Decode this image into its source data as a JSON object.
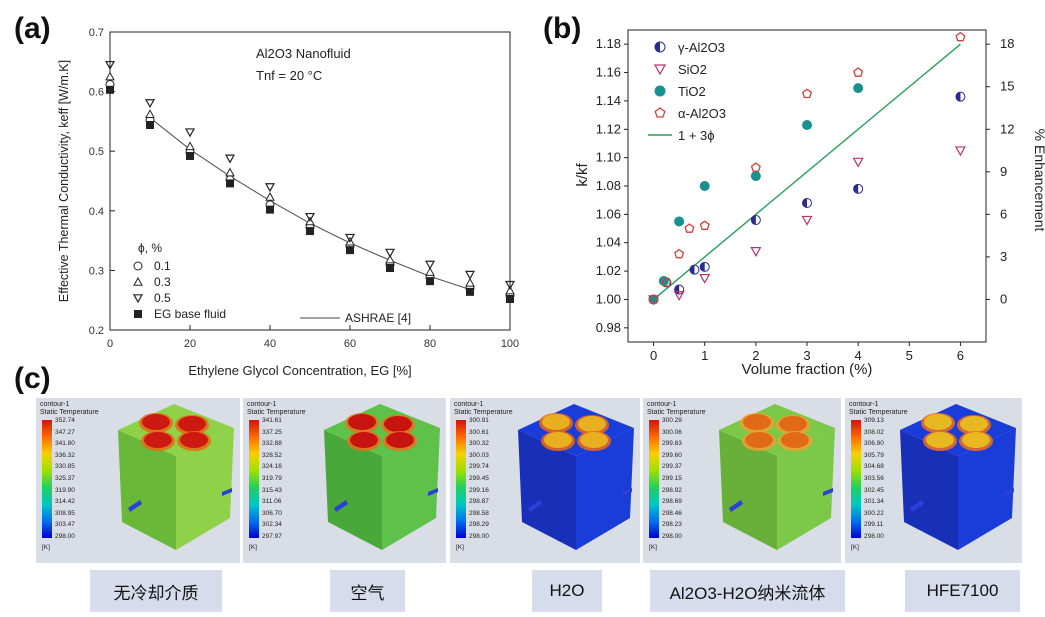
{
  "labels": {
    "a": "(a)",
    "b": "(b)",
    "c": "(c)"
  },
  "chart_data": [
    {
      "type": "scatter",
      "panel": "(a)",
      "title_line1": "Al2O3 Nanofluid",
      "title_line2": "Tnf = 20 °C",
      "xlabel": "Ethylene Glycol Concentration, EG [%]",
      "ylabel": "Effective Thermal Conductivity, keff [W/m.K]",
      "xlim": [
        0,
        100
      ],
      "ylim": [
        0.2,
        0.7
      ],
      "xticks": [
        "0",
        "20",
        "40",
        "60",
        "80",
        "100"
      ],
      "yticks": [
        "0.2",
        "0.3",
        "0.4",
        "0.5",
        "0.6",
        "0.7"
      ],
      "legend_title": "ϕ, %",
      "x": [
        0,
        10,
        20,
        30,
        40,
        50,
        60,
        70,
        80,
        90,
        100
      ],
      "series": [
        {
          "name": "0.1",
          "marker": "circle",
          "values": [
            0.612,
            0.552,
            0.498,
            0.452,
            0.41,
            0.372,
            0.34,
            0.31,
            0.288,
            0.27,
            0.258
          ]
        },
        {
          "name": "0.3",
          "marker": "triangle-up",
          "values": [
            0.625,
            0.562,
            0.508,
            0.464,
            0.423,
            0.382,
            0.348,
            0.318,
            0.297,
            0.279,
            0.266
          ]
        },
        {
          "name": "0.5",
          "marker": "triangle-down",
          "values": [
            0.645,
            0.581,
            0.532,
            0.488,
            0.44,
            0.39,
            0.355,
            0.33,
            0.31,
            0.293,
            0.276
          ]
        },
        {
          "name": "EG base fluid",
          "marker": "square",
          "values": [
            0.603,
            0.544,
            0.492,
            0.446,
            0.402,
            0.366,
            0.334,
            0.304,
            0.282,
            0.264,
            0.252
          ]
        }
      ],
      "fit": {
        "name": "ASHRAE [4]",
        "x": [
          10,
          20,
          30,
          40,
          50,
          60,
          70,
          80,
          90
        ],
        "values": [
          0.556,
          0.503,
          0.458,
          0.417,
          0.379,
          0.346,
          0.317,
          0.29,
          0.268
        ]
      }
    },
    {
      "type": "scatter",
      "panel": "(b)",
      "xlabel": "Volume fraction (%)",
      "ylabel": "k/kf",
      "y2label": "% Enhancement",
      "xlim": [
        -0.5,
        6.5
      ],
      "ylim": [
        0.97,
        1.19
      ],
      "xticks": [
        "0",
        "1",
        "2",
        "3",
        "4",
        "5",
        "6"
      ],
      "yticks": [
        "0.98",
        "1.00",
        "1.02",
        "1.04",
        "1.06",
        "1.08",
        "1.10",
        "1.12",
        "1.14",
        "1.16",
        "1.18"
      ],
      "y2ticks": [
        "0",
        "3",
        "6",
        "9",
        "12",
        "15",
        "18"
      ],
      "series": [
        {
          "name": "γ-Al2O3",
          "color": "#2b2b8f",
          "marker": "half-circle",
          "x": [
            0,
            0.25,
            0.5,
            0.8,
            1,
            2,
            3,
            4,
            6
          ],
          "values": [
            1.0,
            1.012,
            1.007,
            1.021,
            1.023,
            1.056,
            1.068,
            1.078,
            1.143
          ]
        },
        {
          "name": "SiO2",
          "color": "#c0306a",
          "marker": "triangle-down",
          "x": [
            0,
            0.5,
            1,
            2,
            3,
            4,
            6
          ],
          "values": [
            1.0,
            1.003,
            1.015,
            1.034,
            1.056,
            1.097,
            1.105
          ]
        },
        {
          "name": "TiO2",
          "color": "#1a9090",
          "marker": "circle",
          "x": [
            0,
            0.2,
            0.5,
            1,
            2,
            3,
            4
          ],
          "values": [
            1.0,
            1.013,
            1.055,
            1.08,
            1.087,
            1.123,
            1.149
          ]
        },
        {
          "name": "α-Al2O3",
          "color": "#d0403a",
          "marker": "pentagon",
          "x": [
            0,
            0.25,
            0.5,
            0.7,
            1,
            2,
            3,
            4,
            6
          ],
          "values": [
            1.0,
            1.012,
            1.032,
            1.05,
            1.052,
            1.093,
            1.145,
            1.16,
            1.185
          ]
        }
      ],
      "fit": {
        "name": "1 + 3ϕ",
        "color": "#2a9d5c",
        "x": [
          0,
          6
        ],
        "values": [
          1.0,
          1.18
        ]
      }
    }
  ],
  "simulations": [
    {
      "caption": "无冷却介质",
      "cb_title1": "contour-1",
      "cb_title2": "Static Temperature",
      "cb_unit": "[K]",
      "cb_values": [
        "352.74",
        "347.27",
        "341.80",
        "336.32",
        "330.85",
        "325.37",
        "319.90",
        "314.42",
        "308.95",
        "303.47",
        "298.00"
      ],
      "face_color": "#8fd24a",
      "side_color": "#6ab83a",
      "disk_color": "#cc1a12",
      "disk_ring": "#e86a10"
    },
    {
      "caption": "空气",
      "cb_title1": "contour-1",
      "cb_title2": "Static Temperature",
      "cb_unit": "[K]",
      "cb_values": [
        "341.61",
        "337.25",
        "332.88",
        "328.52",
        "324.16",
        "319.79",
        "315.43",
        "311.06",
        "306.70",
        "302.34",
        "297.97"
      ],
      "face_color": "#5ec24a",
      "side_color": "#48a83a",
      "disk_color": "#c81410",
      "disk_ring": "#e8701a"
    },
    {
      "caption": "H2O",
      "cb_title1": "contour-1",
      "cb_title2": "Static Temperature",
      "cb_unit": "[K]",
      "cb_values": [
        "300.91",
        "300.61",
        "300.32",
        "300.03",
        "299.74",
        "299.45",
        "299.16",
        "298.87",
        "298.58",
        "298.29",
        "298.00"
      ],
      "face_color": "#1a3cd8",
      "side_color": "#1830b8",
      "disk_color": "#e8b020",
      "disk_ring": "#f06818"
    },
    {
      "caption": "Al2O3-H2O纳米流体",
      "cb_title1": "contour-1",
      "cb_title2": "Static Temperature",
      "cb_unit": "[K]",
      "cb_values": [
        "300.29",
        "300.06",
        "299.83",
        "299.60",
        "299.37",
        "299.15",
        "298.92",
        "298.69",
        "298.46",
        "298.23",
        "298.00"
      ],
      "face_color": "#7cc848",
      "side_color": "#68b03a",
      "disk_color": "#e06a18",
      "disk_ring": "#f0a030"
    },
    {
      "caption": "HFE7100",
      "cb_title1": "contour-1",
      "cb_title2": "Static Temperature",
      "cb_unit": "[K]",
      "cb_values": [
        "309.13",
        "308.02",
        "306.90",
        "305.79",
        "304.68",
        "303.56",
        "302.45",
        "301.34",
        "300.22",
        "299.11",
        "298.00"
      ],
      "face_color": "#1a3cd8",
      "side_color": "#1830b8",
      "disk_color": "#e8b820",
      "disk_ring": "#f07020"
    }
  ]
}
